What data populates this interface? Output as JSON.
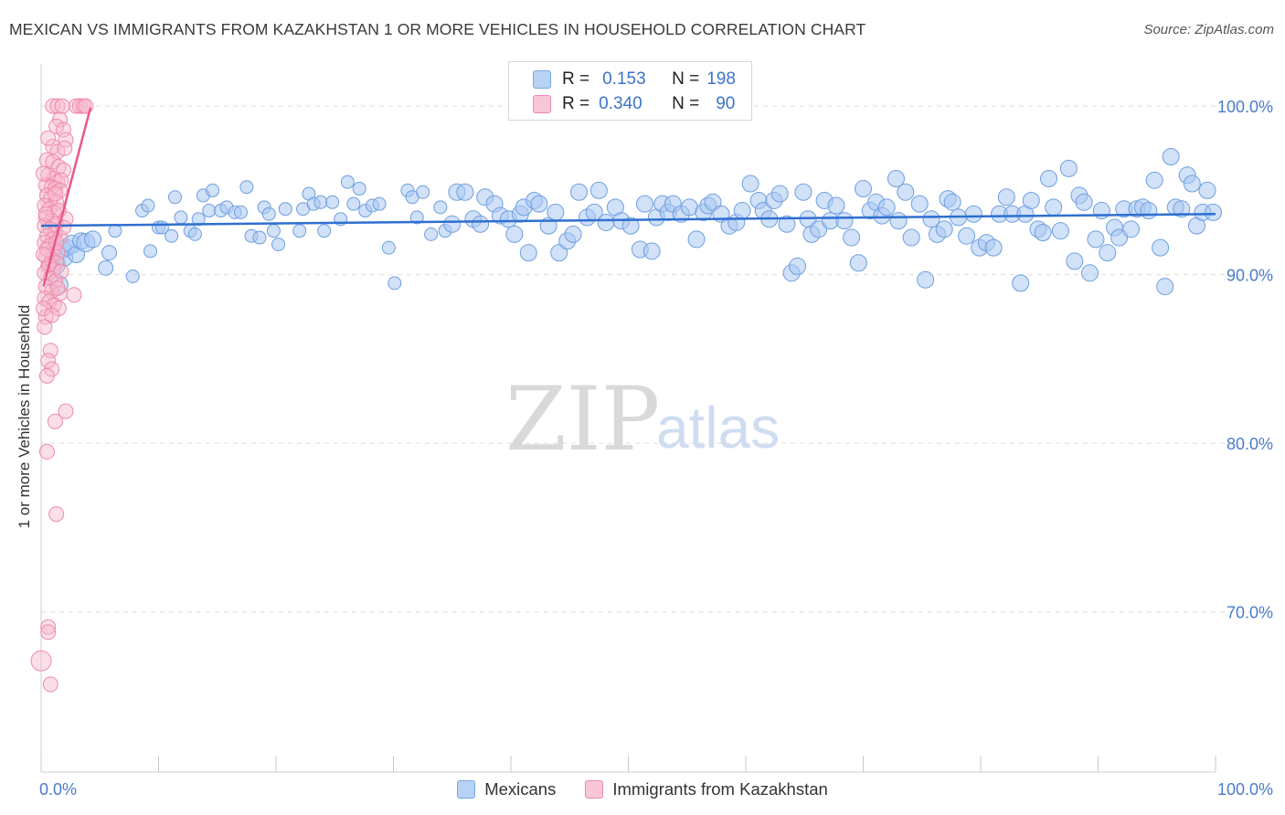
{
  "title": "MEXICAN VS IMMIGRANTS FROM KAZAKHSTAN 1 OR MORE VEHICLES IN HOUSEHOLD CORRELATION CHART",
  "source": "Source: ZipAtlas.com",
  "watermark": {
    "zip": "ZIP",
    "atlas": "atlas"
  },
  "colors": {
    "blue_fill": "#a9c8f2",
    "blue_stroke": "#6f9fdf",
    "blue_line": "#2f6fcf",
    "pink_fill": "#f7b8cb",
    "pink_stroke": "#ee8aa8",
    "pink_line": "#e8578a",
    "axis_text": "#4a7cc9",
    "grid": "#dcdcdc"
  },
  "stats": [
    {
      "series": "Mexicans",
      "r_label": "R =",
      "r": "0.153",
      "n_label": "N =",
      "n": "198"
    },
    {
      "series": "Immigrants from Kazakhstan",
      "r_label": "R =",
      "r": "0.340",
      "n_label": "N =",
      "n": "90"
    }
  ],
  "chart_data": {
    "type": "scatter",
    "title": "MEXICAN VS IMMIGRANTS FROM KAZAKHSTAN 1 OR MORE VEHICLES IN HOUSEHOLD CORRELATION CHART",
    "xlabel": "",
    "ylabel": "1 or more Vehicles in Household",
    "xlim": [
      0,
      100
    ],
    "ylim": [
      60.5,
      102.5
    ],
    "x_tick_labels": [
      "0.0%",
      "100.0%"
    ],
    "y_ticks": [
      70,
      80,
      90,
      100
    ],
    "y_tick_labels": [
      "70.0%",
      "80.0%",
      "90.0%",
      "100.0%"
    ],
    "grid": true,
    "legend": "bottom-center",
    "series": [
      {
        "name": "Mexicans",
        "trend": {
          "x": [
            0,
            100
          ],
          "y": [
            92.9,
            93.6
          ]
        },
        "points": [
          [
            1.2,
            90.6
          ],
          [
            1.5,
            89.4
          ],
          [
            1.8,
            91.5
          ],
          [
            2.0,
            91.0
          ],
          [
            2.2,
            91.6
          ],
          [
            2.6,
            91.8
          ],
          [
            3.0,
            91.2
          ],
          [
            3.4,
            92.0
          ],
          [
            3.8,
            91.9
          ],
          [
            4.4,
            92.1
          ],
          [
            5.5,
            90.4
          ],
          [
            5.8,
            91.3
          ],
          [
            6.3,
            92.6
          ],
          [
            7.8,
            89.9
          ],
          [
            8.6,
            93.8
          ],
          [
            9.1,
            94.1
          ],
          [
            9.3,
            91.4
          ],
          [
            10.0,
            92.8
          ],
          [
            10.3,
            92.8
          ],
          [
            11.1,
            92.3
          ],
          [
            11.4,
            94.6
          ],
          [
            11.9,
            93.4
          ],
          [
            12.7,
            92.6
          ],
          [
            13.1,
            92.4
          ],
          [
            13.4,
            93.3
          ],
          [
            13.8,
            94.7
          ],
          [
            14.3,
            93.8
          ],
          [
            14.6,
            95.0
          ],
          [
            15.3,
            93.8
          ],
          [
            15.8,
            94.0
          ],
          [
            16.5,
            93.7
          ],
          [
            17.0,
            93.7
          ],
          [
            17.5,
            95.2
          ],
          [
            17.9,
            92.3
          ],
          [
            18.6,
            92.2
          ],
          [
            19.0,
            94.0
          ],
          [
            19.4,
            93.6
          ],
          [
            19.8,
            92.6
          ],
          [
            20.2,
            91.8
          ],
          [
            20.8,
            93.9
          ],
          [
            22.0,
            92.6
          ],
          [
            22.3,
            93.9
          ],
          [
            22.8,
            94.8
          ],
          [
            23.2,
            94.2
          ],
          [
            23.8,
            94.3
          ],
          [
            24.1,
            92.6
          ],
          [
            24.8,
            94.3
          ],
          [
            25.5,
            93.3
          ],
          [
            26.1,
            95.5
          ],
          [
            26.6,
            94.2
          ],
          [
            27.1,
            95.1
          ],
          [
            27.6,
            93.8
          ],
          [
            28.2,
            94.1
          ],
          [
            28.8,
            94.2
          ],
          [
            29.6,
            91.6
          ],
          [
            30.1,
            89.5
          ],
          [
            31.2,
            95.0
          ],
          [
            31.6,
            94.6
          ],
          [
            32.0,
            93.4
          ],
          [
            32.5,
            94.9
          ],
          [
            33.2,
            92.4
          ],
          [
            34.0,
            94.0
          ],
          [
            34.4,
            92.6
          ],
          [
            35.0,
            93.0
          ],
          [
            35.4,
            94.9
          ],
          [
            36.1,
            94.9
          ],
          [
            36.8,
            93.3
          ],
          [
            37.4,
            93.0
          ],
          [
            37.8,
            94.6
          ],
          [
            38.6,
            94.2
          ],
          [
            39.1,
            93.5
          ],
          [
            39.8,
            93.3
          ],
          [
            40.3,
            92.4
          ],
          [
            40.8,
            93.6
          ],
          [
            41.1,
            94.0
          ],
          [
            41.5,
            91.3
          ],
          [
            42.0,
            94.4
          ],
          [
            42.4,
            94.2
          ],
          [
            43.2,
            92.9
          ],
          [
            43.8,
            93.7
          ],
          [
            44.1,
            91.3
          ],
          [
            44.8,
            92.0
          ],
          [
            45.3,
            92.4
          ],
          [
            45.8,
            94.9
          ],
          [
            46.5,
            93.4
          ],
          [
            47.1,
            93.7
          ],
          [
            47.5,
            95.0
          ],
          [
            48.1,
            93.1
          ],
          [
            48.9,
            94.0
          ],
          [
            49.4,
            93.2
          ],
          [
            50.2,
            92.9
          ],
          [
            51.0,
            91.5
          ],
          [
            51.4,
            94.2
          ],
          [
            52.0,
            91.4
          ],
          [
            52.4,
            93.4
          ],
          [
            52.9,
            94.2
          ],
          [
            53.4,
            93.7
          ],
          [
            53.8,
            94.2
          ],
          [
            54.5,
            93.6
          ],
          [
            55.2,
            94.0
          ],
          [
            55.8,
            92.1
          ],
          [
            56.4,
            93.7
          ],
          [
            56.8,
            94.1
          ],
          [
            57.2,
            94.3
          ],
          [
            57.9,
            93.6
          ],
          [
            58.6,
            92.9
          ],
          [
            59.2,
            93.1
          ],
          [
            59.7,
            93.8
          ],
          [
            60.4,
            95.4
          ],
          [
            61.1,
            94.4
          ],
          [
            61.5,
            93.8
          ],
          [
            62.0,
            93.3
          ],
          [
            62.4,
            94.4
          ],
          [
            62.9,
            94.8
          ],
          [
            63.5,
            93.0
          ],
          [
            63.9,
            90.1
          ],
          [
            64.4,
            90.5
          ],
          [
            64.9,
            94.9
          ],
          [
            65.3,
            93.3
          ],
          [
            65.6,
            92.4
          ],
          [
            66.2,
            92.7
          ],
          [
            66.7,
            94.4
          ],
          [
            67.2,
            93.2
          ],
          [
            67.7,
            94.1
          ],
          [
            68.4,
            93.2
          ],
          [
            69.0,
            92.2
          ],
          [
            69.6,
            90.7
          ],
          [
            70.0,
            95.1
          ],
          [
            70.6,
            93.8
          ],
          [
            71.1,
            94.3
          ],
          [
            71.6,
            93.5
          ],
          [
            72.0,
            94.0
          ],
          [
            72.8,
            95.7
          ],
          [
            73.0,
            93.2
          ],
          [
            73.6,
            94.9
          ],
          [
            74.1,
            92.2
          ],
          [
            74.8,
            94.2
          ],
          [
            75.3,
            89.7
          ],
          [
            75.8,
            93.3
          ],
          [
            76.3,
            92.4
          ],
          [
            76.9,
            92.7
          ],
          [
            77.2,
            94.5
          ],
          [
            77.6,
            94.3
          ],
          [
            78.1,
            93.4
          ],
          [
            78.8,
            92.3
          ],
          [
            79.4,
            93.6
          ],
          [
            79.9,
            91.6
          ],
          [
            80.5,
            91.9
          ],
          [
            81.1,
            91.6
          ],
          [
            81.6,
            93.6
          ],
          [
            82.2,
            94.6
          ],
          [
            82.7,
            93.6
          ],
          [
            83.4,
            89.5
          ],
          [
            83.8,
            93.6
          ],
          [
            84.3,
            94.4
          ],
          [
            84.9,
            92.7
          ],
          [
            85.3,
            92.5
          ],
          [
            85.8,
            95.7
          ],
          [
            86.2,
            94.0
          ],
          [
            86.8,
            92.6
          ],
          [
            87.5,
            96.3
          ],
          [
            88.0,
            90.8
          ],
          [
            88.4,
            94.7
          ],
          [
            88.8,
            94.3
          ],
          [
            89.3,
            90.1
          ],
          [
            89.8,
            92.1
          ],
          [
            90.3,
            93.8
          ],
          [
            90.8,
            91.3
          ],
          [
            91.4,
            92.8
          ],
          [
            91.8,
            92.2
          ],
          [
            92.2,
            93.9
          ],
          [
            92.8,
            92.7
          ],
          [
            93.3,
            93.9
          ],
          [
            93.8,
            94.0
          ],
          [
            94.3,
            93.8
          ],
          [
            94.8,
            95.6
          ],
          [
            95.3,
            91.6
          ],
          [
            95.7,
            89.3
          ],
          [
            96.2,
            97.0
          ],
          [
            96.6,
            94.0
          ],
          [
            97.1,
            93.9
          ],
          [
            97.6,
            95.9
          ],
          [
            98.0,
            95.4
          ],
          [
            98.4,
            92.9
          ],
          [
            98.9,
            93.7
          ],
          [
            99.3,
            95.0
          ],
          [
            99.8,
            93.7
          ]
        ],
        "sizes": [
          22,
          20,
          20,
          18,
          18,
          20,
          18,
          18,
          20,
          18,
          16,
          16,
          14,
          14,
          14,
          14,
          14,
          14,
          14,
          14,
          14,
          14,
          14,
          14,
          14,
          14,
          14,
          14,
          14,
          14,
          14,
          14,
          14,
          14,
          14,
          14,
          14,
          14,
          14,
          14,
          14,
          14,
          14,
          14,
          14,
          14,
          14,
          14,
          14,
          14,
          14,
          14,
          14,
          14,
          14,
          14,
          14,
          14,
          14,
          14,
          14,
          14,
          14
        ]
      },
      {
        "name": "Immigrants from Kazakhstan",
        "trend": {
          "x": [
            0.2,
            4.2
          ],
          "y": [
            89.3,
            99.9
          ]
        },
        "points": [
          [
            1.0,
            100.0
          ],
          [
            1.4,
            100.0
          ],
          [
            1.8,
            100.0
          ],
          [
            3.0,
            100.0
          ],
          [
            3.3,
            100.0
          ],
          [
            3.6,
            100.0
          ],
          [
            3.8,
            100.0
          ],
          [
            1.6,
            99.2
          ],
          [
            1.3,
            98.8
          ],
          [
            1.9,
            98.6
          ],
          [
            2.1,
            98.0
          ],
          [
            1.0,
            97.6
          ],
          [
            1.4,
            97.3
          ],
          [
            2.0,
            97.5
          ],
          [
            0.5,
            96.8
          ],
          [
            1.0,
            96.7
          ],
          [
            1.5,
            96.4
          ],
          [
            1.9,
            96.2
          ],
          [
            0.6,
            95.9
          ],
          [
            1.1,
            95.7
          ],
          [
            1.4,
            95.5
          ],
          [
            1.7,
            95.6
          ],
          [
            0.4,
            95.3
          ],
          [
            0.9,
            95.2
          ],
          [
            1.2,
            95.1
          ],
          [
            1.6,
            95.0
          ],
          [
            0.5,
            94.7
          ],
          [
            0.8,
            94.5
          ],
          [
            1.3,
            94.3
          ],
          [
            0.3,
            94.1
          ],
          [
            0.7,
            93.9
          ],
          [
            1.1,
            93.7
          ],
          [
            1.5,
            93.8
          ],
          [
            0.4,
            93.4
          ],
          [
            0.9,
            93.2
          ],
          [
            1.3,
            93.0
          ],
          [
            2.1,
            93.3
          ],
          [
            0.3,
            92.9
          ],
          [
            0.8,
            92.7
          ],
          [
            1.2,
            92.5
          ],
          [
            0.5,
            92.3
          ],
          [
            1.0,
            92.1
          ],
          [
            1.6,
            92.2
          ],
          [
            0.3,
            91.9
          ],
          [
            0.7,
            91.7
          ],
          [
            1.1,
            91.5
          ],
          [
            1.4,
            91.3
          ],
          [
            0.4,
            91.1
          ],
          [
            0.9,
            90.9
          ],
          [
            1.3,
            90.7
          ],
          [
            0.6,
            90.5
          ],
          [
            1.0,
            90.3
          ],
          [
            0.3,
            90.1
          ],
          [
            0.8,
            89.8
          ],
          [
            1.2,
            89.6
          ],
          [
            0.4,
            89.3
          ],
          [
            0.9,
            89.0
          ],
          [
            1.6,
            88.9
          ],
          [
            2.8,
            88.8
          ],
          [
            0.3,
            88.6
          ],
          [
            0.7,
            88.4
          ],
          [
            1.1,
            88.2
          ],
          [
            1.5,
            88.0
          ],
          [
            0.4,
            87.5
          ],
          [
            0.3,
            86.9
          ],
          [
            0.8,
            85.5
          ],
          [
            0.6,
            84.9
          ],
          [
            0.9,
            84.4
          ],
          [
            0.5,
            84.0
          ],
          [
            2.1,
            81.9
          ],
          [
            1.2,
            81.3
          ],
          [
            0.5,
            79.5
          ],
          [
            1.3,
            75.8
          ],
          [
            0.6,
            69.1
          ],
          [
            0.6,
            68.8
          ],
          [
            0.0,
            67.1
          ],
          [
            0.8,
            65.7
          ],
          [
            0.2,
            96.0
          ],
          [
            0.5,
            91.5
          ],
          [
            1.9,
            92.8
          ],
          [
            1.3,
            91.9
          ],
          [
            0.7,
            90.6
          ],
          [
            0.2,
            88.0
          ],
          [
            0.9,
            87.6
          ],
          [
            1.7,
            90.2
          ],
          [
            0.4,
            93.6
          ],
          [
            1.2,
            94.8
          ],
          [
            0.6,
            98.1
          ],
          [
            0.2,
            91.2
          ],
          [
            1.4,
            89.2
          ]
        ]
      }
    ]
  },
  "legend": [
    {
      "label": "Mexicans",
      "key": "blue"
    },
    {
      "label": "Immigrants from Kazakhstan",
      "key": "pink"
    }
  ]
}
